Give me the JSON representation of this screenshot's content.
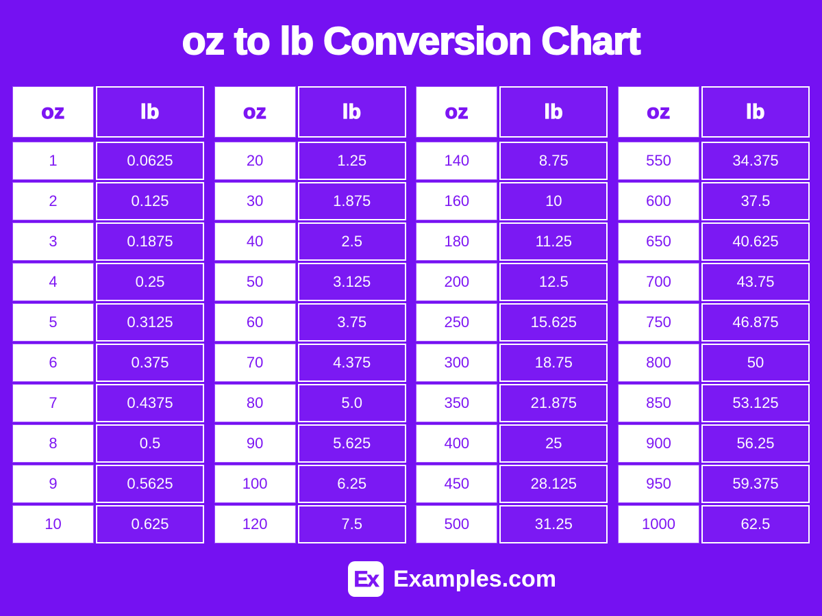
{
  "title": "oz to lb Conversion Chart",
  "colors": {
    "background": "#7511F2",
    "lb_cell_fill": "#7B19F3",
    "oz_cell_fill": "#FFFFFF",
    "oz_text": "#7D15F3",
    "lb_text": "#FBF9FF",
    "oz_cell_border": "#9C4DF8",
    "lb_cell_border": "#FFFFFF",
    "title_text": "#FFFFFF"
  },
  "chart_data": {
    "type": "table",
    "title": "oz to lb Conversion Chart",
    "columns": [
      "oz",
      "lb"
    ],
    "tables": [
      {
        "rows": [
          [
            "1",
            "0.0625"
          ],
          [
            "2",
            "0.125"
          ],
          [
            "3",
            "0.1875"
          ],
          [
            "4",
            "0.25"
          ],
          [
            "5",
            "0.3125"
          ],
          [
            "6",
            "0.375"
          ],
          [
            "7",
            "0.4375"
          ],
          [
            "8",
            "0.5"
          ],
          [
            "9",
            "0.5625"
          ],
          [
            "10",
            "0.625"
          ]
        ]
      },
      {
        "rows": [
          [
            "20",
            "1.25"
          ],
          [
            "30",
            "1.875"
          ],
          [
            "40",
            "2.5"
          ],
          [
            "50",
            "3.125"
          ],
          [
            "60",
            "3.75"
          ],
          [
            "70",
            "4.375"
          ],
          [
            "80",
            "5.0"
          ],
          [
            "90",
            "5.625"
          ],
          [
            "100",
            "6.25"
          ],
          [
            "120",
            "7.5"
          ]
        ]
      },
      {
        "rows": [
          [
            "140",
            "8.75"
          ],
          [
            "160",
            "10"
          ],
          [
            "180",
            "11.25"
          ],
          [
            "200",
            "12.5"
          ],
          [
            "250",
            "15.625"
          ],
          [
            "300",
            "18.75"
          ],
          [
            "350",
            "21.875"
          ],
          [
            "400",
            "25"
          ],
          [
            "450",
            "28.125"
          ],
          [
            "500",
            "31.25"
          ]
        ]
      },
      {
        "rows": [
          [
            "550",
            "34.375"
          ],
          [
            "600",
            "37.5"
          ],
          [
            "650",
            "40.625"
          ],
          [
            "700",
            "43.75"
          ],
          [
            "750",
            "46.875"
          ],
          [
            "800",
            "50"
          ],
          [
            "850",
            "53.125"
          ],
          [
            "900",
            "56.25"
          ],
          [
            "950",
            "59.375"
          ],
          [
            "1000",
            "62.5"
          ]
        ]
      }
    ]
  },
  "footer": {
    "logo_text": "Ex",
    "brand": "Examples.com"
  }
}
